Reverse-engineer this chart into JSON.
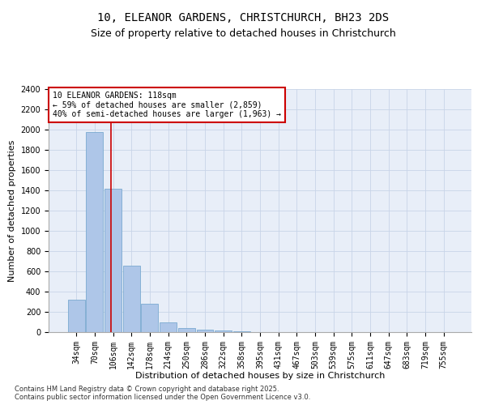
{
  "title_line1": "10, ELEANOR GARDENS, CHRISTCHURCH, BH23 2DS",
  "title_line2": "Size of property relative to detached houses in Christchurch",
  "xlabel": "Distribution of detached houses by size in Christchurch",
  "ylabel": "Number of detached properties",
  "categories": [
    "34sqm",
    "70sqm",
    "106sqm",
    "142sqm",
    "178sqm",
    "214sqm",
    "250sqm",
    "286sqm",
    "322sqm",
    "358sqm",
    "395sqm",
    "431sqm",
    "467sqm",
    "503sqm",
    "539sqm",
    "575sqm",
    "611sqm",
    "647sqm",
    "683sqm",
    "719sqm",
    "755sqm"
  ],
  "values": [
    320,
    1980,
    1420,
    655,
    280,
    100,
    40,
    27,
    18,
    10,
    0,
    0,
    0,
    0,
    0,
    0,
    0,
    0,
    0,
    0,
    0
  ],
  "bar_color": "#aec6e8",
  "bar_edge_color": "#7aaad0",
  "grid_color": "#c8d4e8",
  "background_color": "#e8eef8",
  "annotation_text": "10 ELEANOR GARDENS: 118sqm\n← 59% of detached houses are smaller (2,859)\n40% of semi-detached houses are larger (1,963) →",
  "annotation_box_color": "white",
  "annotation_box_edge_color": "#cc0000",
  "vline_color": "#cc0000",
  "vline_position": 1.87,
  "ylim": [
    0,
    2400
  ],
  "yticks": [
    0,
    200,
    400,
    600,
    800,
    1000,
    1200,
    1400,
    1600,
    1800,
    2000,
    2200,
    2400
  ],
  "footer_text": "Contains HM Land Registry data © Crown copyright and database right 2025.\nContains public sector information licensed under the Open Government Licence v3.0.",
  "title_fontsize": 10,
  "subtitle_fontsize": 9,
  "axis_label_fontsize": 8,
  "tick_fontsize": 7,
  "annotation_fontsize": 7,
  "footer_fontsize": 6
}
